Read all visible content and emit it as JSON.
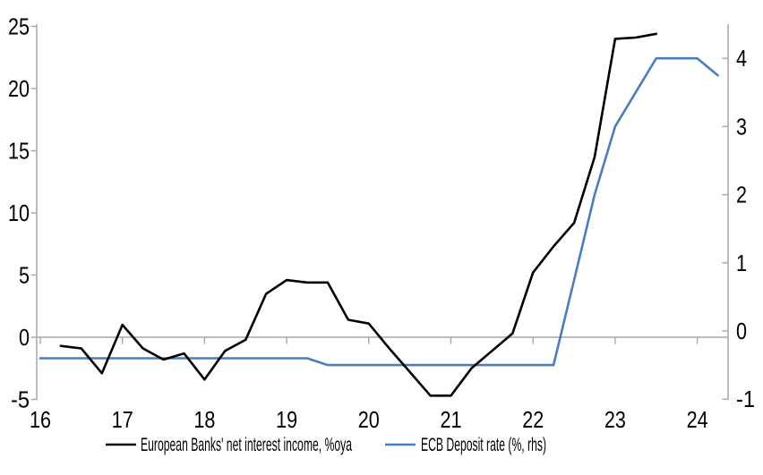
{
  "chart_data": {
    "type": "line",
    "title": "",
    "x_axis": {
      "tick_labels": [
        "16",
        "17",
        "18",
        "19",
        "20",
        "21",
        "22",
        "23",
        "24"
      ],
      "tick_values": [
        16,
        17,
        18,
        19,
        20,
        21,
        22,
        23,
        24
      ],
      "range": [
        16,
        24.38
      ]
    },
    "left_axis": {
      "tick_labels": [
        "25",
        "20",
        "15",
        "10",
        "5",
        "0",
        "-5"
      ],
      "tick_values": [
        25,
        20,
        15,
        10,
        5,
        0,
        -5
      ],
      "range": [
        -5,
        25.2
      ],
      "zero_line": true
    },
    "right_axis": {
      "tick_labels": [
        "4",
        "3",
        "2",
        "1",
        "0",
        "-1"
      ],
      "tick_values": [
        4,
        3,
        2,
        1,
        0,
        -1
      ],
      "range": [
        -1,
        4.5
      ]
    },
    "grid": "zero-line-only",
    "legend_position": "bottom",
    "series": [
      {
        "name": "European Banks' net interest income, %oya",
        "axis": "left",
        "color": "#000000",
        "x": [
          16.25,
          16.5,
          16.75,
          17,
          17.25,
          17.5,
          17.75,
          18,
          18.25,
          18.5,
          18.75,
          19,
          19.25,
          19.5,
          19.75,
          20,
          20.25,
          20.5,
          20.75,
          21,
          21.25,
          21.5,
          21.75,
          22,
          22.25,
          22.5,
          22.75,
          23,
          23.25,
          23.5
        ],
        "values": [
          -0.7,
          -0.9,
          -2.9,
          1.0,
          -0.9,
          -1.8,
          -1.3,
          -3.4,
          -1.1,
          -0.2,
          3.5,
          4.6,
          4.4,
          4.4,
          1.4,
          1.1,
          -0.9,
          -2.8,
          -4.7,
          -4.7,
          -2.5,
          -1.1,
          0.3,
          5.2,
          7.3,
          9.2,
          14.5,
          24.0,
          24.1,
          24.4
        ]
      },
      {
        "name": "ECB Deposit rate (%, rhs)",
        "axis": "right",
        "color": "#4a7ebb",
        "x": [
          16,
          16.25,
          16.5,
          16.75,
          17,
          17.25,
          17.5,
          17.75,
          18,
          18.25,
          18.5,
          18.75,
          19,
          19.25,
          19.5,
          19.75,
          20,
          20.25,
          20.5,
          20.75,
          21,
          21.25,
          21.5,
          21.75,
          22,
          22.25,
          22.5,
          22.75,
          23,
          23.25,
          23.5,
          23.75,
          24,
          24.25
        ],
        "values": [
          -0.4,
          -0.4,
          -0.4,
          -0.4,
          -0.4,
          -0.4,
          -0.4,
          -0.4,
          -0.4,
          -0.4,
          -0.4,
          -0.4,
          -0.4,
          -0.4,
          -0.5,
          -0.5,
          -0.5,
          -0.5,
          -0.5,
          -0.5,
          -0.5,
          -0.5,
          -0.5,
          -0.5,
          -0.5,
          -0.5,
          0.75,
          2.0,
          3.0,
          3.5,
          4.0,
          4.0,
          4.0,
          3.75
        ]
      }
    ]
  },
  "colors": {
    "axis": "#a6a6a6",
    "zero_line": "#a6a6a6",
    "text": "#000000",
    "background": "#ffffff",
    "series1": "#000000",
    "series2": "#4a7ebb"
  },
  "legend": {
    "item1": "European Banks' net interest income, %oya",
    "item2": "ECB Deposit rate (%, rhs)"
  }
}
